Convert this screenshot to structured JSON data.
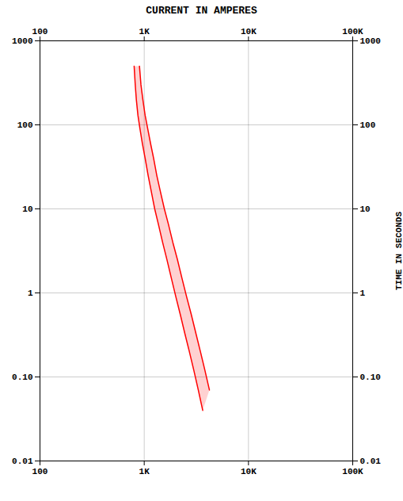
{
  "chart_data": {
    "type": "line",
    "title": "CURRENT IN AMPERES",
    "ylabel": "TIME IN SECONDS",
    "log": true,
    "grid": true,
    "xlim": [
      100,
      100000
    ],
    "ylim": [
      0.01,
      1000
    ],
    "xticks": [
      100,
      {
        "value": 1000,
        "label": "1K"
      },
      {
        "value": 10000,
        "label": "10K"
      },
      {
        "value": 100000,
        "label": "100K"
      }
    ],
    "yticks": [
      0.01,
      {
        "value": 0.1,
        "label": "0.10"
      },
      1,
      10,
      100,
      1000
    ],
    "series": [
      {
        "color": "#FF0000",
        "x": [
          800,
          820,
          840,
          870,
          910,
          960,
          1020,
          1090,
          1170,
          1260,
          1370,
          1500,
          1650,
          1820,
          2010,
          2220,
          2450,
          2710,
          2990,
          3300,
          3640
        ],
        "values": [
          500,
          300,
          200,
          130,
          90,
          60,
          40,
          25,
          16,
          10,
          6.5,
          4.0,
          2.5,
          1.5,
          0.9,
          0.55,
          0.33,
          0.2,
          0.12,
          0.07,
          0.04
        ]
      },
      {
        "color": "#FF0000",
        "x": [
          900,
          930,
          970,
          1020,
          1080,
          1150,
          1230,
          1320,
          1430,
          1560,
          1710,
          1880,
          2080,
          2300,
          2550,
          2830,
          3130,
          3460,
          3820,
          4220
        ],
        "values": [
          500,
          300,
          200,
          130,
          90,
          60,
          40,
          25,
          16,
          10,
          6.5,
          4.0,
          2.5,
          1.5,
          0.9,
          0.55,
          0.33,
          0.2,
          0.12,
          0.07
        ]
      }
    ]
  }
}
